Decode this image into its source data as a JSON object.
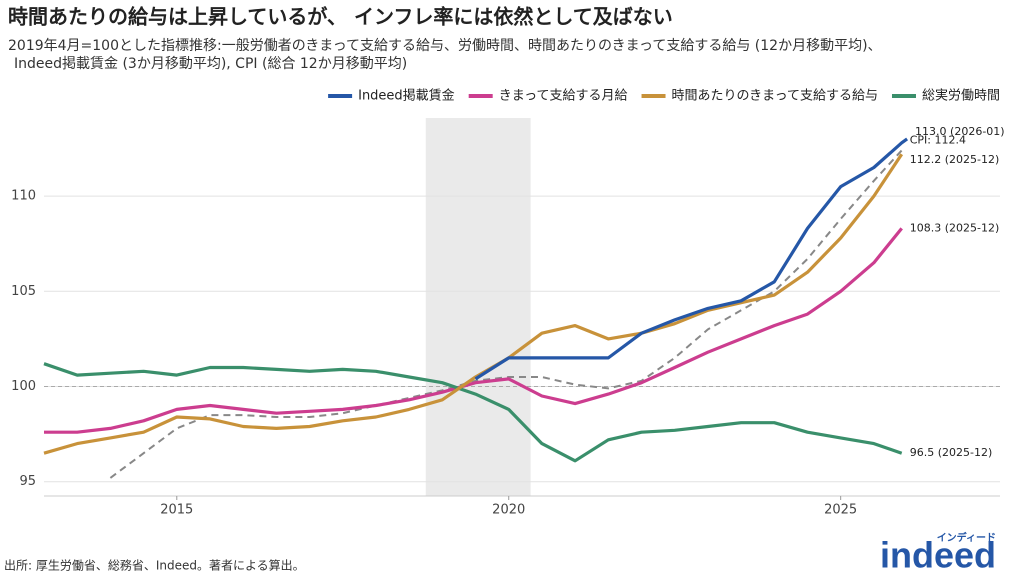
{
  "chart_data": {
    "type": "line",
    "title": "時間あたりの給与は上昇しているが、 インフレ率には依然として及ばない",
    "subtitle": [
      "2019年4月=100とした指標推移:一般労働者のきまって支給する給与、労働時間、時間あたりのきまって支給する給与 (12か月移動平均)、",
      "Indeed掲載賃金 (3か月移動平均), CPI (総合 12か月移動平均)"
    ],
    "x": [
      2013.0,
      2013.5,
      2014.0,
      2014.5,
      2015.0,
      2015.5,
      2016.0,
      2016.5,
      2017.0,
      2017.5,
      2018.0,
      2018.5,
      2019.0,
      2019.5,
      2020.0,
      2020.5,
      2021.0,
      2021.5,
      2022.0,
      2022.5,
      2023.0,
      2023.5,
      2024.0,
      2024.5,
      2025.0,
      2025.5,
      2025.92,
      2026.0
    ],
    "series": [
      {
        "name": "Indeed掲載賃金",
        "color": "#2557a7",
        "end_label": "113.0 (2026-01)",
        "values": [
          null,
          null,
          null,
          null,
          null,
          null,
          null,
          null,
          null,
          null,
          null,
          null,
          null,
          100.4,
          101.5,
          101.5,
          101.5,
          101.5,
          102.8,
          103.5,
          104.1,
          104.5,
          105.5,
          108.3,
          110.5,
          111.5,
          112.8,
          113.0
        ]
      },
      {
        "name": "きまって支給する月給",
        "color": "#cc3d8f",
        "end_label": "108.3 (2025-12)",
        "values": [
          97.6,
          97.6,
          97.8,
          98.2,
          98.8,
          99.0,
          98.8,
          98.6,
          98.7,
          98.8,
          99.0,
          99.3,
          99.7,
          100.2,
          100.4,
          99.5,
          99.1,
          99.6,
          100.2,
          101.0,
          101.8,
          102.5,
          103.2,
          103.8,
          105.0,
          106.5,
          108.3,
          null
        ]
      },
      {
        "name": "時間あたりのきまって支給する給与",
        "color": "#c8923a",
        "end_label": "112.2 (2025-12)",
        "values": [
          96.5,
          97.0,
          97.3,
          97.6,
          98.4,
          98.3,
          97.9,
          97.8,
          97.9,
          98.2,
          98.4,
          98.8,
          99.3,
          100.5,
          101.5,
          102.8,
          103.2,
          102.5,
          102.8,
          103.3,
          104.0,
          104.4,
          104.8,
          106.0,
          107.8,
          110.0,
          112.2,
          null
        ]
      },
      {
        "name": "総実労働時間",
        "color": "#3a8f6b",
        "end_label": "96.5 (2025-12)",
        "values": [
          101.2,
          100.6,
          100.7,
          100.8,
          100.6,
          101.0,
          101.0,
          100.9,
          100.8,
          100.9,
          100.8,
          100.5,
          100.2,
          99.6,
          98.8,
          97.0,
          96.1,
          97.2,
          97.6,
          97.7,
          97.9,
          98.1,
          98.1,
          97.6,
          97.3,
          97.0,
          96.5,
          null
        ]
      }
    ],
    "cpi": {
      "color": "#888888",
      "end_label": "CPI: 112.4",
      "values": [
        null,
        null,
        95.2,
        96.5,
        97.8,
        98.5,
        98.5,
        98.4,
        98.4,
        98.6,
        99.0,
        99.4,
        99.8,
        100.3,
        100.5,
        100.5,
        100.1,
        99.9,
        100.3,
        101.5,
        103.0,
        104.0,
        105.0,
        106.7,
        108.8,
        110.8,
        112.4,
        null
      ]
    },
    "shaded_range": [
      2018.75,
      2020.33
    ],
    "reference_y": 100,
    "xlim": [
      2013.0,
      2027.4
    ],
    "ylim": [
      94.25,
      114.1
    ],
    "xticks": [
      2015,
      2020,
      2025
    ],
    "yticks": [
      95,
      100,
      105,
      110
    ],
    "grid": true,
    "legend": "top-right",
    "source": "出所: 厚生労働省、総務省、Indeed。著者による算出。",
    "logo": {
      "text": "indeed",
      "kana": "インディード"
    }
  }
}
